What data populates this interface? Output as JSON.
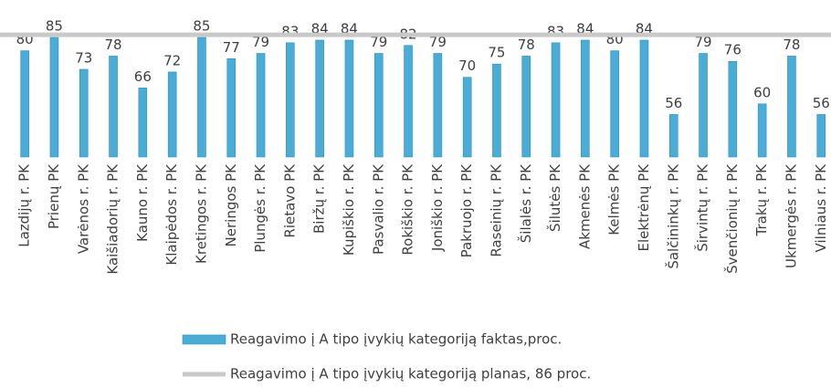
{
  "chart_data": {
    "type": "bar",
    "categories": [
      "Lazdijų r. PK",
      "Prienų PK",
      "Varėnos r. PK",
      "Kaišiadorių r. PK",
      "Kauno r. PK",
      "Klaipėdos r. PK",
      "Kretingos r. PK",
      "Neringos PK",
      "Plungės r. PK",
      "Rietavo PK",
      "Biržų r. PK",
      "Kupiškio r. PK",
      "Pasvalio r. PK",
      "Rokiškio r. PK",
      "Joniškio r. PK",
      "Pakruojo r. PK",
      "Raseinių r. PK",
      "Šilalės r. PK",
      "Šilutės PK",
      "Akmenės PK",
      "Kelmės PK",
      "Elektrėnų PK",
      "Šalčininkų r. PK",
      "Širvintų r. PK",
      "Švenčionių r. PK",
      "Trakų r. PK",
      "Ukmergės r. PK",
      "Vilniaus r. PK"
    ],
    "series": [
      {
        "name": "Reagavimo į A tipo įvykių kategoriją faktas,proc.",
        "color": "#4bacd6",
        "values": [
          80,
          85,
          73,
          78,
          66,
          72,
          85,
          77,
          79,
          83,
          84,
          84,
          79,
          82,
          79,
          70,
          75,
          78,
          83,
          84,
          80,
          84,
          56,
          79,
          76,
          60,
          78,
          56
        ]
      }
    ],
    "reference_line": {
      "name": "Reagavimo į A tipo įvykių kategoriją planas, 86 proc.",
      "value": 86,
      "color": "#c9c9c9"
    },
    "ylim": [
      40,
      90
    ]
  }
}
